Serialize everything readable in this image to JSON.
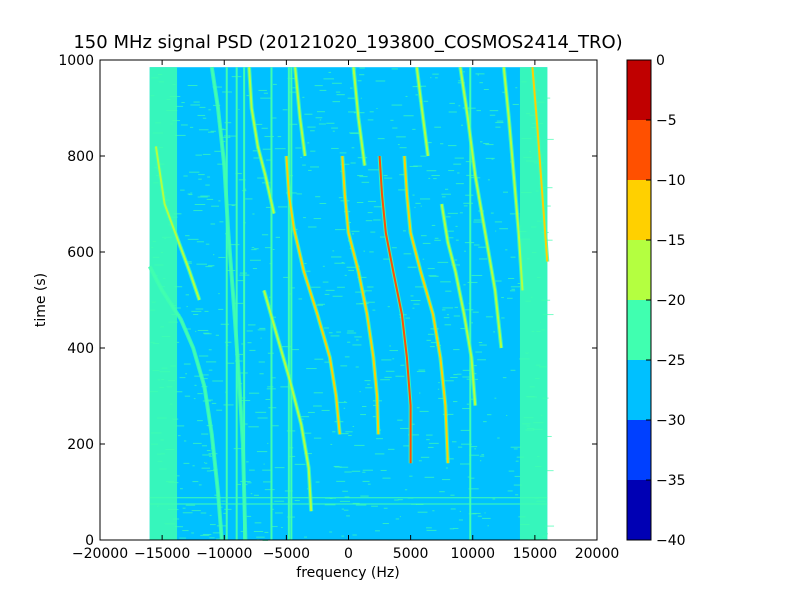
{
  "chart_data": {
    "type": "heatmap",
    "title": "150 MHz signal PSD (20121020_193800_COSMOS2414_TRO)",
    "xlabel": "frequency (Hz)",
    "ylabel": "time (s)",
    "xlim": [
      -20000,
      20000
    ],
    "ylim": [
      0,
      1000
    ],
    "x_ticks": [
      -20000,
      -15000,
      -10000,
      -5000,
      0,
      5000,
      10000,
      15000,
      20000
    ],
    "x_tick_labels": [
      "−20000",
      "−15000",
      "−10000",
      "−5000",
      "0",
      "5000",
      "10000",
      "15000",
      "20000"
    ],
    "y_ticks": [
      0,
      200,
      400,
      600,
      800,
      1000
    ],
    "y_tick_labels": [
      "0",
      "200",
      "400",
      "600",
      "800",
      "1000"
    ],
    "data_extent": {
      "x": [
        -16000,
        16000
      ],
      "y": [
        0,
        985
      ]
    },
    "background_level": -27,
    "edge_level": -22,
    "colorbar": {
      "levels": [
        -40,
        -35,
        -30,
        -25,
        -20,
        -15,
        -10,
        -5,
        0
      ],
      "tick_labels": [
        "−40",
        "−35",
        "−30",
        "−25",
        "−20",
        "−15",
        "−10",
        "−5",
        "0"
      ],
      "colors": [
        "#0000b4",
        "#0040ff",
        "#00c0ff",
        "#40ffb0",
        "#b4ff40",
        "#ffd000",
        "#ff5000",
        "#c00000"
      ]
    },
    "vertical_lines": [
      {
        "x": -9800,
        "level": -22
      },
      {
        "x": -9000,
        "level": -22
      },
      {
        "x": -8400,
        "level": -22
      },
      {
        "x": -6200,
        "level": -22
      },
      {
        "x": -4800,
        "level": -22
      },
      {
        "x": -4600,
        "level": -22
      },
      {
        "x": 9800,
        "level": -22
      }
    ],
    "horizontal_lines": [
      {
        "y": 75,
        "level": -22
      },
      {
        "y": 88,
        "level": -22
      }
    ],
    "doppler_tracks": [
      {
        "points": [
          [
            -11000,
            985
          ],
          [
            -10500,
            900
          ],
          [
            -10000,
            780
          ],
          [
            -9700,
            650
          ],
          [
            -9200,
            480
          ],
          [
            -8800,
            330
          ],
          [
            -8500,
            200
          ],
          [
            -8300,
            0
          ]
        ],
        "level": -22
      },
      {
        "points": [
          [
            -16000,
            570
          ],
          [
            -15000,
            520
          ],
          [
            -13500,
            460
          ],
          [
            -12500,
            400
          ],
          [
            -11600,
            320
          ],
          [
            -11000,
            220
          ],
          [
            -10500,
            100
          ],
          [
            -10200,
            0
          ]
        ],
        "level": -22
      },
      {
        "points": [
          [
            -15500,
            820
          ],
          [
            -14800,
            700
          ],
          [
            -13800,
            630
          ],
          [
            -12800,
            560
          ],
          [
            -12000,
            500
          ]
        ],
        "level": -20
      },
      {
        "points": [
          [
            -5000,
            800
          ],
          [
            -4800,
            720
          ],
          [
            -4400,
            650
          ],
          [
            -3600,
            560
          ],
          [
            -2500,
            470
          ],
          [
            -1500,
            380
          ],
          [
            -1000,
            300
          ],
          [
            -700,
            220
          ]
        ],
        "level": -12
      },
      {
        "points": [
          [
            -500,
            800
          ],
          [
            -300,
            720
          ],
          [
            0,
            640
          ],
          [
            800,
            560
          ],
          [
            1500,
            470
          ],
          [
            2000,
            380
          ],
          [
            2300,
            300
          ],
          [
            2400,
            220
          ]
        ],
        "level": -12
      },
      {
        "points": [
          [
            2500,
            800
          ],
          [
            2700,
            720
          ],
          [
            3000,
            640
          ],
          [
            3600,
            560
          ],
          [
            4300,
            470
          ],
          [
            4700,
            380
          ],
          [
            5000,
            280
          ],
          [
            5000,
            160
          ]
        ],
        "level": -8
      },
      {
        "points": [
          [
            4500,
            800
          ],
          [
            4700,
            720
          ],
          [
            5000,
            640
          ],
          [
            5800,
            560
          ],
          [
            6800,
            470
          ],
          [
            7400,
            380
          ],
          [
            7800,
            280
          ],
          [
            8000,
            160
          ]
        ],
        "level": -12
      },
      {
        "points": [
          [
            7500,
            700
          ],
          [
            8000,
            620
          ],
          [
            8600,
            560
          ],
          [
            9300,
            470
          ],
          [
            9900,
            380
          ],
          [
            10200,
            280
          ]
        ],
        "level": -18
      },
      {
        "points": [
          [
            9000,
            985
          ],
          [
            9600,
            880
          ],
          [
            10200,
            760
          ],
          [
            11000,
            640
          ],
          [
            11800,
            520
          ],
          [
            12300,
            400
          ]
        ],
        "level": -20
      },
      {
        "points": [
          [
            12500,
            985
          ],
          [
            12900,
            880
          ],
          [
            13300,
            760
          ],
          [
            13700,
            640
          ],
          [
            14000,
            520
          ]
        ],
        "level": -20
      },
      {
        "points": [
          [
            14800,
            985
          ],
          [
            15200,
            860
          ],
          [
            15600,
            720
          ],
          [
            16000,
            580
          ]
        ],
        "level": -15
      },
      {
        "points": [
          [
            -8000,
            985
          ],
          [
            -7800,
            900
          ],
          [
            -7300,
            820
          ],
          [
            -6700,
            760
          ],
          [
            -6000,
            680
          ]
        ],
        "level": -20
      },
      {
        "points": [
          [
            -6800,
            520
          ],
          [
            -5800,
            430
          ],
          [
            -4800,
            340
          ],
          [
            -3800,
            240
          ],
          [
            -3200,
            150
          ],
          [
            -3000,
            60
          ]
        ],
        "level": -20
      },
      {
        "points": [
          [
            -4300,
            985
          ],
          [
            -3900,
            880
          ],
          [
            -3500,
            800
          ]
        ],
        "level": -20
      },
      {
        "points": [
          [
            400,
            985
          ],
          [
            800,
            880
          ],
          [
            1300,
            780
          ]
        ],
        "level": -20
      },
      {
        "points": [
          [
            5500,
            985
          ],
          [
            5900,
            900
          ],
          [
            6400,
            800
          ]
        ],
        "level": -20
      }
    ]
  }
}
